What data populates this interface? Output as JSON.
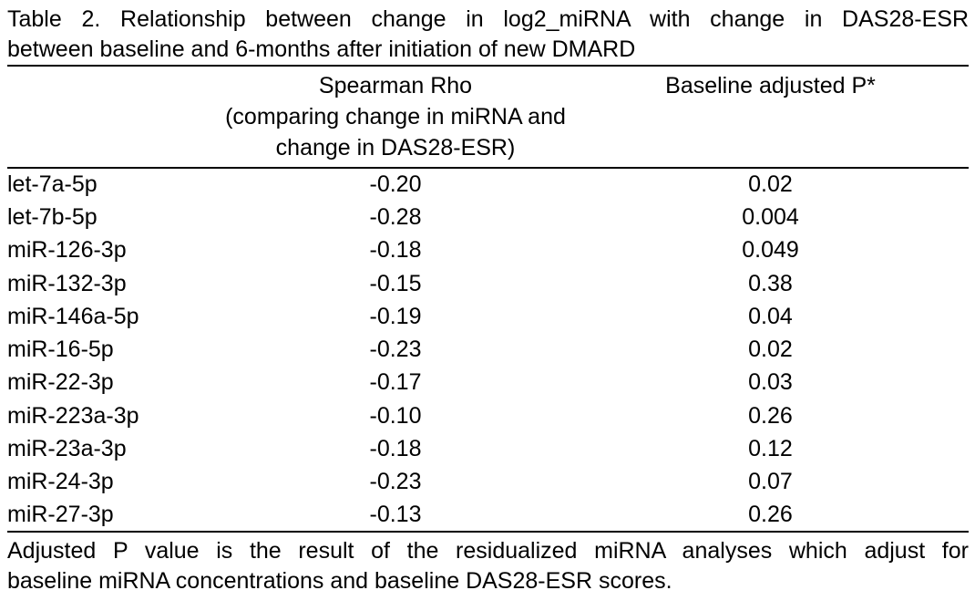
{
  "table": {
    "title": {
      "line1": "Table 2. Relationship between change in log2_miRNA with change in DAS28-ESR",
      "line2": "between baseline and 6-months after initiation of new DMARD"
    },
    "header": {
      "rowlabel": "",
      "col2_line1": "Spearman Rho",
      "col2_line2": "(comparing change in miRNA and",
      "col2_line3": "change in DAS28-ESR)",
      "col3": "Baseline adjusted P*"
    },
    "rows": [
      {
        "name": "let-7a-5p",
        "rho": "-0.20",
        "p": "0.02"
      },
      {
        "name": "let-7b-5p",
        "rho": "-0.28",
        "p": "0.004"
      },
      {
        "name": "miR-126-3p",
        "rho": "-0.18",
        "p": "0.049"
      },
      {
        "name": "miR-132-3p",
        "rho": "-0.15",
        "p": "0.38"
      },
      {
        "name": "miR-146a-5p",
        "rho": "-0.19",
        "p": "0.04"
      },
      {
        "name": "miR-16-5p",
        "rho": "-0.23",
        "p": "0.02"
      },
      {
        "name": "miR-22-3p",
        "rho": "-0.17",
        "p": "0.03"
      },
      {
        "name": "miR-223a-3p",
        "rho": "-0.10",
        "p": "0.26"
      },
      {
        "name": "miR-23a-3p",
        "rho": "-0.18",
        "p": "0.12"
      },
      {
        "name": "miR-24-3p",
        "rho": "-0.23",
        "p": "0.07"
      },
      {
        "name": "miR-27-3p",
        "rho": "-0.13",
        "p": "0.26"
      }
    ],
    "footnote": {
      "line1": "Adjusted P value is the result of the residualized miRNA analyses which adjust for",
      "line2": "baseline miRNA concentrations and baseline DAS28-ESR scores."
    }
  }
}
